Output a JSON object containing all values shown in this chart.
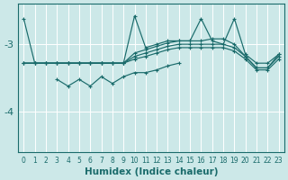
{
  "xlabel": "Humidex (Indice chaleur)",
  "bg_color": "#cce8e8",
  "line_color": "#1a6b6b",
  "grid_color": "#ffffff",
  "xlim": [
    -0.5,
    23.5
  ],
  "ylim": [
    -4.6,
    -2.4
  ],
  "yticks": [
    -4,
    -3
  ],
  "ytick_labels": [
    "-4",
    "-3"
  ],
  "xticks": [
    0,
    1,
    2,
    3,
    4,
    5,
    6,
    7,
    8,
    9,
    10,
    11,
    12,
    13,
    14,
    15,
    16,
    17,
    18,
    19,
    20,
    21,
    22,
    23
  ],
  "spike_x": [
    0,
    1,
    2,
    3,
    4,
    5,
    6,
    7,
    8,
    9,
    10,
    11,
    12,
    13,
    14,
    15,
    16,
    17,
    18,
    19,
    20,
    21,
    22,
    23
  ],
  "spike_y": [
    -2.62,
    -3.28,
    -3.28,
    -3.28,
    -3.28,
    -3.28,
    -3.28,
    -3.28,
    -3.28,
    -3.28,
    -2.58,
    -3.05,
    -3.0,
    -2.95,
    -2.95,
    -2.95,
    -2.62,
    -2.95,
    -3.0,
    -2.62,
    -3.15,
    -3.28,
    -3.28,
    -3.15
  ],
  "band1_x": [
    0,
    1,
    2,
    3,
    4,
    5,
    6,
    7,
    8,
    9,
    10,
    11,
    12,
    13,
    14,
    15,
    16,
    17,
    18,
    19,
    20,
    21,
    22,
    23
  ],
  "band1_y": [
    -3.28,
    -3.28,
    -3.28,
    -3.28,
    -3.28,
    -3.28,
    -3.28,
    -3.28,
    -3.28,
    -3.28,
    -3.18,
    -3.13,
    -3.08,
    -3.03,
    -3.0,
    -3.0,
    -3.0,
    -3.0,
    -3.0,
    -3.05,
    -3.18,
    -3.35,
    -3.35,
    -3.18
  ],
  "band2_x": [
    0,
    1,
    2,
    3,
    4,
    5,
    6,
    7,
    8,
    9,
    10,
    11,
    12,
    13,
    14,
    15,
    16,
    17,
    18,
    19,
    20,
    21,
    22,
    23
  ],
  "band2_y": [
    -3.28,
    -3.28,
    -3.28,
    -3.28,
    -3.28,
    -3.28,
    -3.28,
    -3.28,
    -3.28,
    -3.28,
    -3.13,
    -3.08,
    -3.03,
    -2.98,
    -2.95,
    -2.95,
    -2.95,
    -2.92,
    -2.92,
    -3.0,
    -3.18,
    -3.35,
    -3.35,
    -3.15
  ],
  "band3_x": [
    0,
    1,
    2,
    3,
    4,
    5,
    6,
    7,
    8,
    9,
    10,
    11,
    12,
    13,
    14,
    15,
    16,
    17,
    18,
    19,
    20,
    21,
    22,
    23
  ],
  "band3_y": [
    -3.28,
    -3.28,
    -3.28,
    -3.28,
    -3.28,
    -3.28,
    -3.28,
    -3.28,
    -3.28,
    -3.28,
    -3.22,
    -3.18,
    -3.13,
    -3.08,
    -3.05,
    -3.05,
    -3.05,
    -3.05,
    -3.05,
    -3.1,
    -3.22,
    -3.38,
    -3.38,
    -3.22
  ],
  "lower_x": [
    3,
    4,
    5,
    6,
    7,
    8,
    9,
    10,
    11,
    12,
    13,
    14
  ],
  "lower_y": [
    -3.52,
    -3.62,
    -3.52,
    -3.62,
    -3.48,
    -3.58,
    -3.48,
    -3.42,
    -3.42,
    -3.38,
    -3.32,
    -3.28
  ]
}
